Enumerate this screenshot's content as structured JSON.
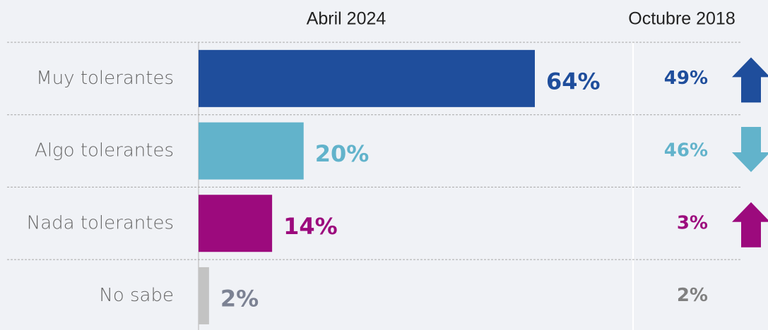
{
  "chart_data": {
    "type": "bar",
    "orientation": "horizontal",
    "categories": [
      "Muy tolerantes",
      "Algo tolerantes",
      "Nada tolerantes",
      "No sabe"
    ],
    "series": [
      {
        "name": "Abril 2024",
        "colors": [
          "#1f4e9c",
          "#62b3cb",
          "#9c0a7d",
          "#c3c3c3"
        ],
        "label_colors": [
          "#1f4e9c",
          "#62b3cb",
          "#9c0a7d",
          "#7c8293"
        ],
        "values": [
          64,
          20,
          14,
          2
        ],
        "value_labels": [
          "64%",
          "20%",
          "14%",
          "2%"
        ]
      },
      {
        "name": "Octubre 2018",
        "label_colors": [
          "#1f4e9c",
          "#62b3cb",
          "#9c0a7d",
          "#808080"
        ],
        "values": [
          49,
          46,
          3,
          2
        ],
        "value_labels": [
          "49%",
          "46%",
          "3%",
          "2%"
        ]
      }
    ]
  }
}
